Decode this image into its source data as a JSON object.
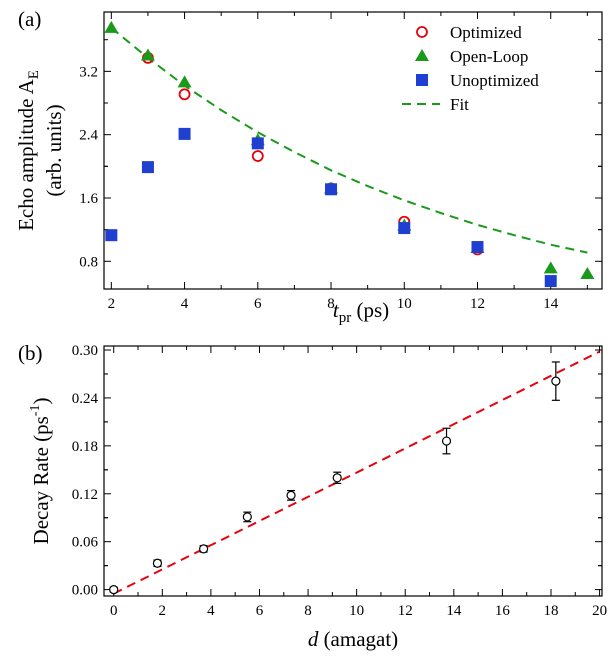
{
  "chart_data": [
    {
      "type": "scatter",
      "panel_label": "(a)",
      "xlabel": {
        "main": "t",
        "sub": "pr",
        "unit": " (ps)"
      },
      "ylabel": {
        "line1_main": "Echo amplitude A",
        "line1_sub": "E",
        "line2": "(arb. units)"
      },
      "xlim": [
        1.8,
        15.4
      ],
      "ylim": [
        0.45,
        3.95
      ],
      "xticks": [
        2,
        4,
        6,
        8,
        10,
        12,
        14
      ],
      "yticks": [
        0.8,
        1.6,
        2.4,
        3.2
      ],
      "ytick_labels": [
        "0.8",
        "1.6",
        "2.4",
        "3.2"
      ],
      "legend_position": "top-right",
      "series": [
        {
          "name": "Optimized",
          "marker": "open-circle",
          "color": "#e8000b",
          "x": [
            3,
            4,
            6,
            8,
            10,
            12
          ],
          "y": [
            3.37,
            2.91,
            2.13,
            1.72,
            1.3,
            0.95
          ]
        },
        {
          "name": "Open-Loop",
          "marker": "filled-triangle",
          "color": "#1a9a1a",
          "x": [
            2,
            3,
            4,
            6,
            8,
            10,
            12,
            14,
            15
          ],
          "y": [
            3.75,
            3.4,
            3.06,
            2.33,
            1.72,
            1.25,
            0.97,
            0.71,
            0.64
          ]
        },
        {
          "name": "Unoptimized",
          "marker": "filled-square",
          "color": "#1f3fd0",
          "x": [
            2,
            3,
            4,
            6,
            8,
            10,
            12,
            14
          ],
          "y": [
            1.13,
            1.99,
            2.41,
            2.29,
            1.71,
            1.22,
            0.98,
            0.55
          ]
        },
        {
          "name": "Fit",
          "marker": "dashed-line",
          "color": "#1a9a1a",
          "x": [
            2,
            3,
            4,
            5,
            6,
            7,
            8,
            9,
            10,
            11,
            12,
            13,
            14,
            15
          ],
          "y": [
            3.75,
            3.37,
            3.02,
            2.71,
            2.43,
            2.18,
            1.95,
            1.75,
            1.57,
            1.41,
            1.26,
            1.13,
            1.01,
            0.91
          ]
        }
      ]
    },
    {
      "type": "scatter",
      "panel_label": "(b)",
      "xlabel": {
        "main": "d",
        "unit": " (amagat)"
      },
      "ylabel": {
        "main": "Decay Rate (ps",
        "sup": "-1",
        "close": ")"
      },
      "xlim": [
        -0.4,
        20.1
      ],
      "ylim": [
        -0.008,
        0.305
      ],
      "xticks": [
        0,
        2,
        4,
        6,
        8,
        10,
        12,
        14,
        16,
        18,
        20
      ],
      "yticks": [
        0.0,
        0.06,
        0.12,
        0.18,
        0.24,
        0.3
      ],
      "ytick_labels": [
        "0.00",
        "0.06",
        "0.12",
        "0.18",
        "0.24",
        "0.30"
      ],
      "series": [
        {
          "marker": "open-circle-errorbar",
          "color": "#000000",
          "x": [
            0,
            1.8,
            3.7,
            5.5,
            7.3,
            9.2,
            13.7,
            18.2
          ],
          "y": [
            0.0,
            0.033,
            0.051,
            0.091,
            0.118,
            0.14,
            0.186,
            0.261
          ],
          "err": [
            0.003,
            0.004,
            0.004,
            0.006,
            0.006,
            0.007,
            0.016,
            0.024
          ]
        },
        {
          "marker": "dashed-line",
          "color": "#e8000b",
          "x": [
            0,
            20
          ],
          "y": [
            -0.005,
            0.298
          ]
        }
      ]
    }
  ]
}
